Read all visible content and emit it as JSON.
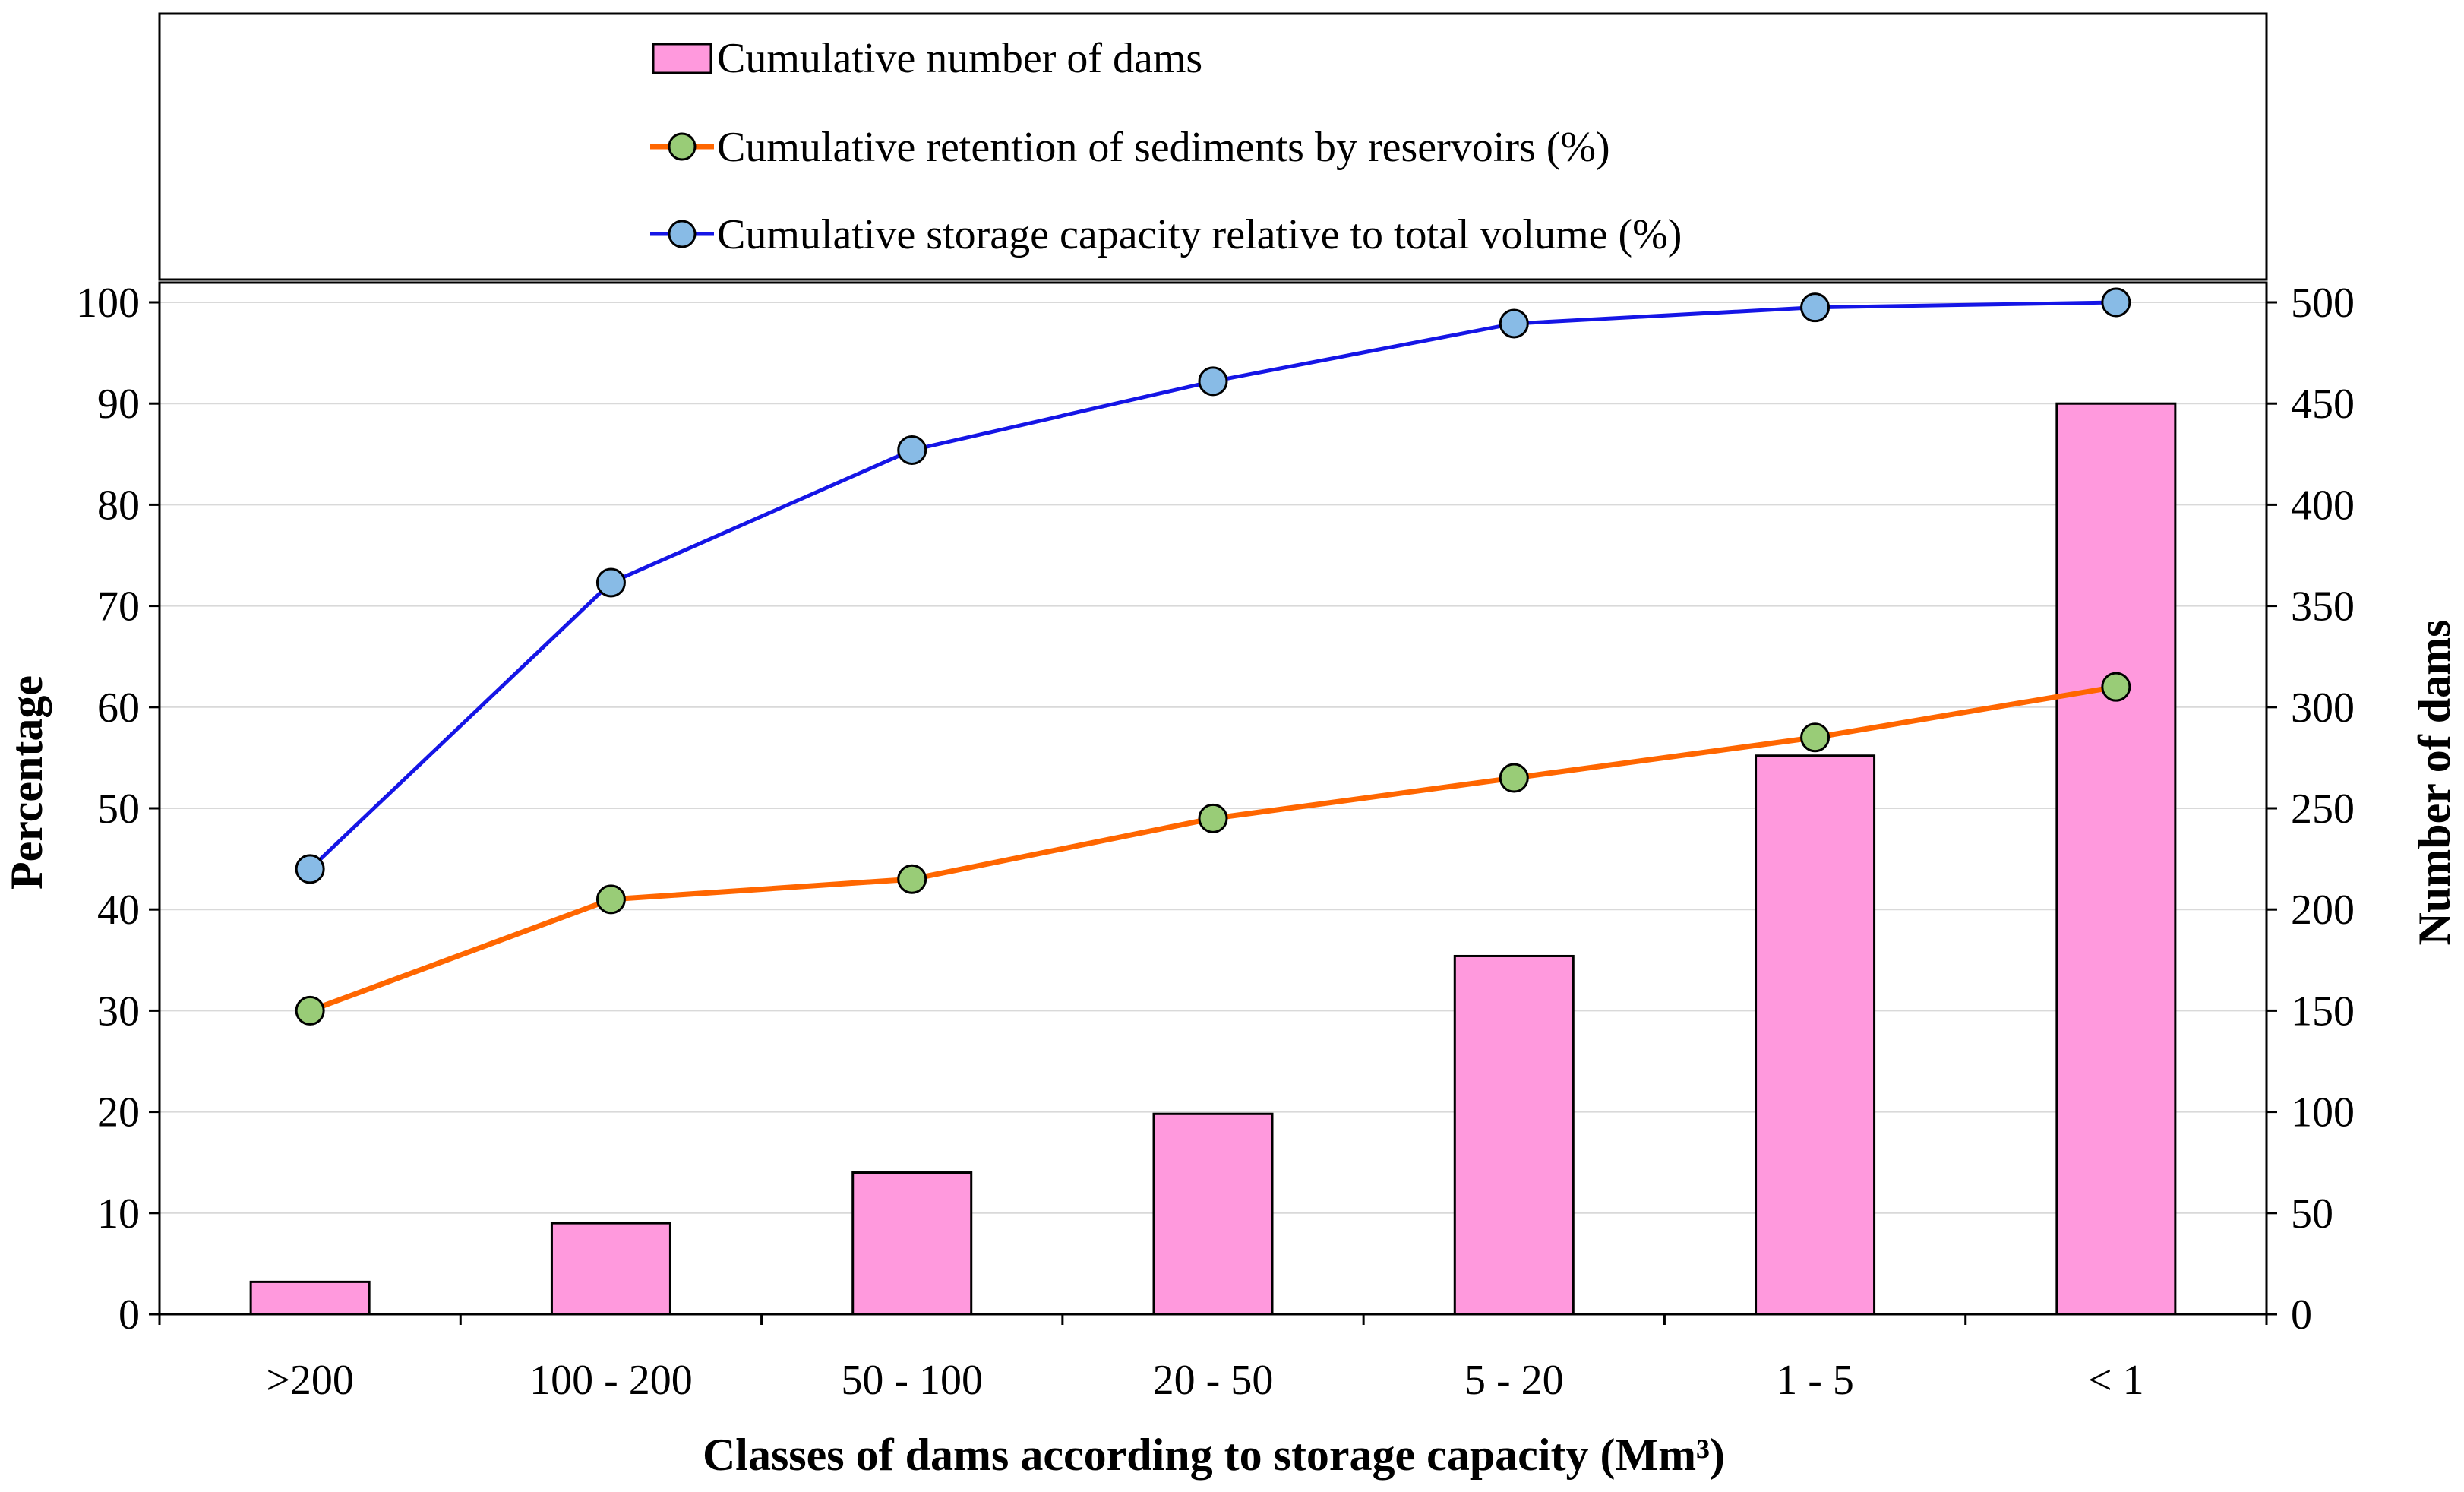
{
  "chart_data": {
    "type": "bar+line",
    "title": "",
    "categories": [
      ">200",
      "100 - 200",
      "50 - 100",
      "20 - 50",
      "5 - 20",
      "1 - 5",
      "< 1"
    ],
    "xlabel": "Classes of dams according to storage capacity (Mm³)",
    "ylabel_left": "Percentage",
    "ylabel_right": "Number of dams",
    "ylim_left": [
      0,
      100
    ],
    "ylim_right": [
      0,
      500
    ],
    "yticks_left": [
      0,
      10,
      20,
      30,
      40,
      50,
      60,
      70,
      80,
      90,
      100
    ],
    "yticks_right": [
      0,
      50,
      100,
      150,
      200,
      250,
      300,
      350,
      400,
      450,
      500
    ],
    "grid": "horizontal",
    "legend_position": "top",
    "series": [
      {
        "name": "Cumulative number of dams",
        "kind": "bar",
        "axis": "right",
        "color": "#FF99DD",
        "values": [
          16,
          45,
          70,
          99,
          177,
          276,
          450
        ]
      },
      {
        "name": "Cumulative retention of sediments by reservoirs (%)",
        "kind": "line",
        "axis": "left",
        "color": "#FF6600",
        "marker_color": "#99CC77",
        "values": [
          30,
          41,
          43,
          49,
          53,
          57,
          62
        ]
      },
      {
        "name": "Cumulative storage capacity relative to total volume (%)",
        "kind": "line",
        "axis": "left",
        "color": "#1515E6",
        "marker_color": "#88BBE6",
        "values": [
          44,
          72.3,
          85.4,
          92.2,
          97.9,
          99.5,
          100
        ]
      }
    ]
  }
}
